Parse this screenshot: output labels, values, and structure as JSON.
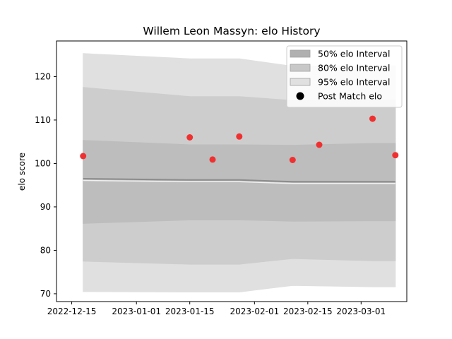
{
  "chart_data": {
    "type": "area",
    "title": "Willem Leon Massyn: elo History",
    "xlabel": "",
    "ylabel": "elo score",
    "xlim": [
      "2022-12-11",
      "2023-03-13"
    ],
    "ylim": [
      68.2,
      128.2
    ],
    "x_ticks": [
      "2022-12-15",
      "2023-01-01",
      "2023-01-15",
      "2023-02-01",
      "2023-02-15",
      "2023-03-01"
    ],
    "y_ticks": [
      70,
      80,
      90,
      100,
      110,
      120
    ],
    "grid": false,
    "legend_position": "upper right",
    "legend": [
      {
        "label": "50% elo Interval",
        "kind": "band",
        "color": "#b0b0b0"
      },
      {
        "label": "80% elo Interval",
        "kind": "band",
        "color": "#c8c8c8"
      },
      {
        "label": "95% elo Interval",
        "kind": "band",
        "color": "#e0e0e0"
      },
      {
        "label": "Post Match elo",
        "kind": "marker",
        "color": "#000000"
      }
    ],
    "band_x": [
      "2022-12-18",
      "2023-01-15",
      "2023-01-28",
      "2023-02-11",
      "2023-03-04",
      "2023-03-10"
    ],
    "bands": [
      {
        "name": "95% elo Interval",
        "color": "#e0e0e0",
        "lower": [
          70.5,
          70.4,
          70.4,
          71.9,
          71.6,
          71.6
        ],
        "upper": [
          125.3,
          124.1,
          124.1,
          122.4,
          122.5,
          122.5
        ]
      },
      {
        "name": "80% elo Interval",
        "color": "#cdcdcd",
        "lower": [
          77.5,
          76.8,
          76.8,
          78.1,
          77.6,
          77.6
        ],
        "upper": [
          117.5,
          115.4,
          115.4,
          114.5,
          114.6,
          114.6
        ]
      },
      {
        "name": "50% elo Interval",
        "color": "#bdbdbd",
        "lower": [
          86.2,
          87.0,
          87.0,
          86.7,
          86.8,
          86.8
        ],
        "upper": [
          105.3,
          104.3,
          104.3,
          104.2,
          104.6,
          104.6
        ]
      }
    ],
    "mean_line": {
      "color": "#8c8c8c",
      "y": [
        96.5,
        96.2,
        96.2,
        95.8,
        95.8,
        95.8
      ]
    },
    "post_match": {
      "color": "#f03030",
      "x": [
        "2022-12-18",
        "2023-01-15",
        "2023-01-21",
        "2023-01-28",
        "2023-02-11",
        "2023-02-18",
        "2023-03-04",
        "2023-03-10"
      ],
      "y": [
        101.7,
        106.0,
        100.9,
        106.2,
        100.8,
        104.3,
        110.3,
        101.9
      ]
    }
  }
}
